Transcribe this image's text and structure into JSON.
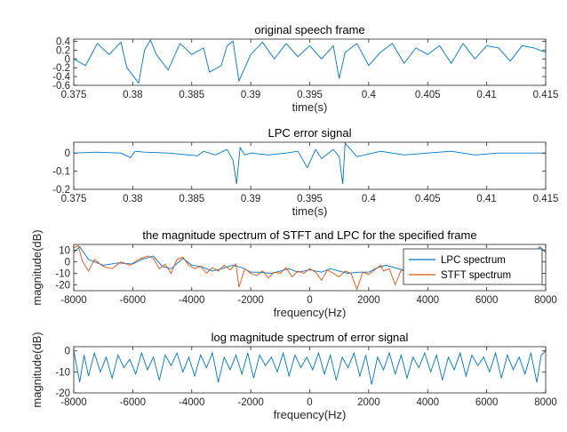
{
  "chart_data": [
    {
      "type": "line",
      "title": "original speech frame",
      "xlabel": "time(s)",
      "ylabel": "",
      "xlim": [
        0.375,
        0.415
      ],
      "ylim": [
        -0.6,
        0.45
      ],
      "xticks": [
        0.375,
        0.38,
        0.385,
        0.39,
        0.395,
        0.4,
        0.405,
        0.41,
        0.415
      ],
      "xtick_labels": [
        "0.375",
        "0.38",
        "0.385",
        "0.39",
        "0.395",
        "0.4",
        "0.405",
        "0.41",
        "0.415"
      ],
      "yticks": [
        0.4,
        0.2,
        0,
        -0.2,
        -0.4,
        -0.6
      ],
      "ytick_labels": [
        "0.4",
        "0.2",
        "0",
        "-0.2",
        "-0.4",
        "-0.6"
      ],
      "series": [
        {
          "color": "#0072bd",
          "x": [
            0.375,
            0.376,
            0.377,
            0.378,
            0.379,
            0.3795,
            0.3805,
            0.381,
            0.3815,
            0.382,
            0.383,
            0.384,
            0.385,
            0.386,
            0.3865,
            0.3875,
            0.388,
            0.3885,
            0.389,
            0.39,
            0.391,
            0.392,
            0.393,
            0.394,
            0.395,
            0.396,
            0.397,
            0.3975,
            0.398,
            0.399,
            0.4,
            0.401,
            0.402,
            0.403,
            0.404,
            0.405,
            0.406,
            0.407,
            0.408,
            0.409,
            0.41,
            0.411,
            0.412,
            0.413,
            0.414,
            0.415
          ],
          "y": [
            0.0,
            -0.15,
            0.35,
            0.1,
            0.38,
            -0.2,
            -0.55,
            0.2,
            0.43,
            0.1,
            -0.25,
            0.35,
            0.1,
            0.25,
            -0.3,
            -0.15,
            0.3,
            0.4,
            -0.5,
            0.1,
            0.38,
            0.0,
            0.35,
            0.05,
            0.3,
            0.0,
            0.3,
            -0.45,
            0.15,
            0.35,
            -0.15,
            0.15,
            0.35,
            -0.1,
            0.25,
            0.1,
            0.3,
            -0.1,
            0.35,
            0.0,
            0.3,
            0.25,
            -0.05,
            0.3,
            0.25,
            0.15
          ]
        }
      ]
    },
    {
      "type": "line",
      "title": "LPC error signal",
      "xlabel": "time(s)",
      "ylabel": "",
      "xlim": [
        0.375,
        0.415
      ],
      "ylim": [
        -0.2,
        0.06
      ],
      "xticks": [
        0.375,
        0.38,
        0.385,
        0.39,
        0.395,
        0.4,
        0.405,
        0.41,
        0.415
      ],
      "xtick_labels": [
        "0.375",
        "0.38",
        "0.385",
        "0.39",
        "0.395",
        "0.4",
        "0.405",
        "0.41",
        "0.415"
      ],
      "yticks": [
        0,
        -0.1,
        -0.2
      ],
      "ytick_labels": [
        "0",
        "-0.1",
        "-0.2"
      ],
      "series": [
        {
          "color": "#0072bd",
          "x": [
            0.375,
            0.377,
            0.379,
            0.3798,
            0.3802,
            0.381,
            0.383,
            0.3855,
            0.386,
            0.387,
            0.388,
            0.3885,
            0.3888,
            0.3891,
            0.3895,
            0.39,
            0.3915,
            0.393,
            0.394,
            0.3948,
            0.3955,
            0.396,
            0.397,
            0.3975,
            0.3978,
            0.398,
            0.399,
            0.401,
            0.403,
            0.405,
            0.407,
            0.409,
            0.411,
            0.413,
            0.415
          ],
          "y": [
            0.0,
            0.005,
            0.0,
            -0.025,
            0.01,
            0.005,
            0.0,
            -0.015,
            0.01,
            -0.01,
            0.02,
            -0.04,
            -0.17,
            0.03,
            -0.01,
            0.0,
            -0.01,
            0.0,
            0.01,
            -0.08,
            0.02,
            -0.03,
            0.02,
            -0.02,
            -0.17,
            0.055,
            -0.02,
            0.01,
            -0.01,
            0.0,
            0.01,
            -0.01,
            0.0,
            0.0,
            0.0
          ]
        }
      ]
    },
    {
      "type": "line",
      "title": "the magnitude spectrum of STFT and LPC for the specified frame",
      "xlabel": "frequency(Hz)",
      "ylabel": "magnitude(dB)",
      "xlim": [
        -8000,
        8000
      ],
      "ylim": [
        -25,
        15
      ],
      "xticks": [
        -8000,
        -6000,
        -4000,
        -2000,
        0,
        2000,
        4000,
        6000,
        8000
      ],
      "xtick_labels": [
        "-8000",
        "-6000",
        "-4000",
        "-2000",
        "0",
        "2000",
        "4000",
        "6000",
        "8000"
      ],
      "yticks": [
        10,
        0,
        -10,
        -20
      ],
      "ytick_labels": [
        "10",
        "0",
        "-10",
        "-20"
      ],
      "legend": {
        "placement": "right",
        "entries": [
          "LPC spectrum",
          "STFT spectrum"
        ]
      },
      "series": [
        {
          "name": "LPC spectrum",
          "color": "#0072bd",
          "x": [
            -8000,
            -7800,
            -7500,
            -7000,
            -6500,
            -6000,
            -5700,
            -5300,
            -5000,
            -4700,
            -4300,
            -4000,
            -3700,
            -3300,
            -3000,
            -2600,
            -2300,
            -2000,
            -1700,
            -1300,
            -1000,
            -700,
            -400,
            0,
            400,
            700,
            1000,
            1300,
            1700,
            2000,
            2300,
            2600,
            3000,
            3300,
            3700,
            4000,
            4300,
            4700,
            5000,
            5300,
            5700,
            6000,
            6500,
            7000,
            7500,
            7800,
            8000
          ],
          "y": [
            8,
            13,
            2,
            -3,
            -1,
            -2,
            2,
            5,
            -4,
            -6,
            3,
            -3,
            -4,
            -8,
            -6,
            -3,
            -5,
            -9,
            -9,
            -10,
            -8,
            -6,
            -9,
            -7,
            -9,
            -6,
            -8,
            -10,
            -9,
            -9,
            -5,
            -3,
            -6,
            -8,
            -4,
            -3,
            3,
            -6,
            -4,
            5,
            2,
            -2,
            -1,
            -3,
            2,
            13,
            8
          ]
        },
        {
          "name": "STFT spectrum",
          "color": "#d95319",
          "x": [
            -8000,
            -7850,
            -7700,
            -7500,
            -7300,
            -7000,
            -6700,
            -6400,
            -6100,
            -5800,
            -5500,
            -5300,
            -5100,
            -4900,
            -4700,
            -4500,
            -4300,
            -4100,
            -3900,
            -3700,
            -3500,
            -3300,
            -3100,
            -2900,
            -2700,
            -2500,
            -2400,
            -2200,
            -2000,
            -1800,
            -1600,
            -1400,
            -1200,
            -1000,
            -800,
            -600,
            -400,
            -200,
            0,
            200,
            400,
            600,
            800,
            1000,
            1200,
            1400,
            1600,
            1800,
            2000,
            2200,
            2400,
            2500,
            2700,
            2900,
            3100,
            3300
          ],
          "y": [
            12,
            14,
            0,
            -8,
            2,
            -4,
            -6,
            0,
            -3,
            2,
            5,
            3,
            -6,
            -2,
            -10,
            2,
            4,
            -3,
            -6,
            -4,
            -10,
            -5,
            -8,
            -3,
            -7,
            -2,
            -22,
            -6,
            -10,
            -12,
            -8,
            -14,
            -9,
            -10,
            -5,
            -13,
            -8,
            -10,
            -6,
            -9,
            -16,
            -7,
            -10,
            -13,
            -8,
            -10,
            -24,
            -9,
            -11,
            -7,
            -3,
            -8,
            -6,
            -20,
            -7,
            -9
          ]
        }
      ]
    },
    {
      "type": "line",
      "title": "log magnitude spectrum of error signal",
      "xlabel": "frequency(Hz)",
      "ylabel": "magnitude(dB)",
      "xlim": [
        -8000,
        8000
      ],
      "ylim": [
        -20,
        2
      ],
      "xticks": [
        -8000,
        -6000,
        -4000,
        -2000,
        0,
        2000,
        4000,
        6000,
        8000
      ],
      "xtick_labels": [
        "-8000",
        "-6000",
        "-4000",
        "-2000",
        "0",
        "2000",
        "4000",
        "6000",
        "8000"
      ],
      "yticks": [
        0,
        -10,
        -20
      ],
      "ytick_labels": [
        "0",
        "-10",
        "-20"
      ],
      "series": [
        {
          "color": "#0072bd",
          "x": [
            -8000,
            -7800,
            -7650,
            -7500,
            -7300,
            -7100,
            -6900,
            -6700,
            -6500,
            -6300,
            -6100,
            -5900,
            -5700,
            -5500,
            -5300,
            -5100,
            -4900,
            -4700,
            -4500,
            -4300,
            -4100,
            -3900,
            -3700,
            -3500,
            -3300,
            -3100,
            -2900,
            -2700,
            -2500,
            -2300,
            -2100,
            -1900,
            -1700,
            -1500,
            -1300,
            -1100,
            -900,
            -700,
            -500,
            -300,
            -100,
            100,
            300,
            500,
            700,
            900,
            1100,
            1300,
            1500,
            1700,
            1900,
            2100,
            2300,
            2500,
            2700,
            2900,
            3100,
            3300,
            3500,
            3700,
            3900,
            4100,
            4300,
            4500,
            4700,
            4900,
            5100,
            5300,
            5500,
            5700,
            5900,
            6100,
            6300,
            6500,
            6700,
            6900,
            7100,
            7300,
            7500,
            7700,
            7850,
            8000
          ],
          "y": [
            0,
            -15,
            -2,
            -12,
            -1,
            -10,
            -3,
            -13,
            -2,
            -8,
            -4,
            -11,
            -1,
            -9,
            -3,
            -14,
            -2,
            -7,
            -1,
            -10,
            -3,
            -12,
            -2,
            -8,
            -1,
            -15,
            -3,
            -9,
            -2,
            -11,
            -1,
            -13,
            -2,
            -7,
            -3,
            -10,
            -1,
            -12,
            -2,
            -8,
            -3,
            -9,
            -1,
            -11,
            -2,
            -14,
            -3,
            -8,
            -1,
            -12,
            -2,
            -16,
            -3,
            -9,
            -1,
            -11,
            -2,
            -13,
            -3,
            -8,
            -1,
            -10,
            -2,
            -14,
            -3,
            -9,
            -1,
            -12,
            -2,
            -7,
            -3,
            -10,
            -1,
            -13,
            -2,
            -9,
            -3,
            -11,
            -1,
            -15,
            -2,
            0
          ]
        }
      ]
    }
  ]
}
